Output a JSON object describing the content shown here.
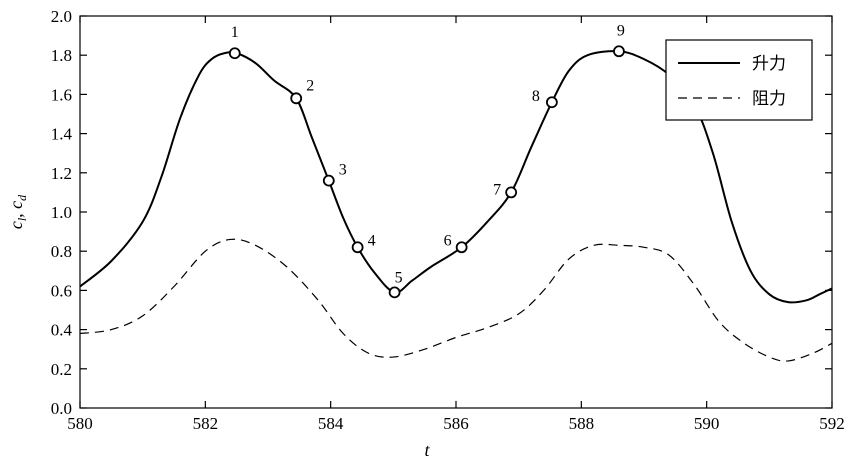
{
  "chart_data": {
    "type": "line",
    "xlabel": "t",
    "ylabel_parts": [
      "c",
      "l",
      ", ",
      "c",
      "d"
    ],
    "xlim": [
      580,
      592
    ],
    "ylim": [
      0.0,
      2.0
    ],
    "x_ticks": [
      "580",
      "582",
      "584",
      "586",
      "588",
      "590",
      "592"
    ],
    "y_ticks": [
      "0.0",
      "0.2",
      "0.4",
      "0.6",
      "0.8",
      "1.0",
      "1.2",
      "1.4",
      "1.6",
      "1.8",
      "2.0"
    ],
    "legend_position": "top-right",
    "grid": false,
    "series": [
      {
        "name": "升力",
        "style": "solid",
        "color": "#000000",
        "x": [
          580.0,
          580.5,
          581.0,
          581.3,
          581.6,
          581.9,
          582.1,
          582.3,
          582.5,
          582.8,
          583.1,
          583.45,
          583.7,
          583.97,
          584.2,
          584.43,
          584.7,
          585.02,
          585.3,
          585.6,
          586.09,
          586.5,
          586.88,
          587.2,
          587.53,
          587.8,
          588.1,
          588.6,
          589.0,
          589.4,
          589.8,
          590.1,
          590.4,
          590.7,
          591.0,
          591.3,
          591.6,
          591.8,
          592.0
        ],
        "y": [
          0.62,
          0.75,
          0.95,
          1.18,
          1.48,
          1.7,
          1.78,
          1.81,
          1.81,
          1.76,
          1.67,
          1.58,
          1.38,
          1.16,
          0.97,
          0.82,
          0.69,
          0.59,
          0.65,
          0.72,
          0.82,
          0.95,
          1.1,
          1.33,
          1.56,
          1.72,
          1.8,
          1.82,
          1.78,
          1.7,
          1.55,
          1.3,
          0.95,
          0.7,
          0.58,
          0.54,
          0.55,
          0.58,
          0.61
        ]
      },
      {
        "name": "阻力",
        "style": "dashed",
        "color": "#000000",
        "x": [
          580.0,
          580.5,
          581.0,
          581.5,
          582.0,
          582.4,
          582.8,
          583.3,
          583.8,
          584.2,
          584.6,
          585.0,
          585.5,
          586.0,
          586.5,
          587.0,
          587.4,
          587.8,
          588.2,
          588.6,
          589.0,
          589.4,
          589.8,
          590.2,
          590.6,
          591.0,
          591.3,
          591.7,
          592.0
        ],
        "y": [
          0.38,
          0.4,
          0.47,
          0.62,
          0.8,
          0.86,
          0.83,
          0.72,
          0.55,
          0.38,
          0.28,
          0.26,
          0.3,
          0.36,
          0.41,
          0.48,
          0.6,
          0.76,
          0.83,
          0.83,
          0.82,
          0.78,
          0.63,
          0.44,
          0.33,
          0.26,
          0.24,
          0.28,
          0.33
        ]
      }
    ],
    "markers": [
      {
        "label": "1",
        "x": 582.47,
        "y": 1.81
      },
      {
        "label": "2",
        "x": 583.45,
        "y": 1.58
      },
      {
        "label": "3",
        "x": 583.97,
        "y": 1.16
      },
      {
        "label": "4",
        "x": 584.43,
        "y": 0.82
      },
      {
        "label": "5",
        "x": 585.02,
        "y": 0.59
      },
      {
        "label": "6",
        "x": 586.09,
        "y": 0.82
      },
      {
        "label": "7",
        "x": 586.88,
        "y": 1.1
      },
      {
        "label": "8",
        "x": 587.53,
        "y": 1.56
      },
      {
        "label": "9",
        "x": 588.6,
        "y": 1.82
      }
    ]
  }
}
